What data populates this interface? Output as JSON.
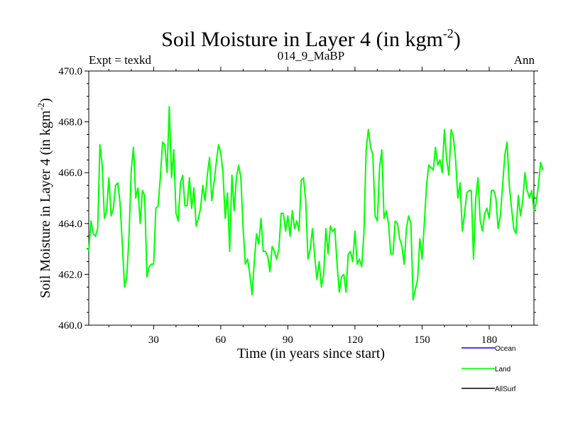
{
  "chart_data": {
    "type": "line",
    "title": "Soil Moisture in Layer 4 (in kgm",
    "title_sup": "-2",
    "title_close": ")",
    "subtitle_left": "Expt = texkd",
    "subtitle_center": "014_9_MaBP",
    "subtitle_right": "Ann",
    "xlabel": "Time (in years since start)",
    "ylabel": "Soil Moisture in Layer 4 (in kgm",
    "ylabel_sup": "-2",
    "ylabel_close": ")",
    "xlim": [
      1,
      200
    ],
    "ylim": [
      460,
      470
    ],
    "xticks": [
      30,
      60,
      90,
      120,
      150,
      180
    ],
    "xtick_labels": [
      "30",
      "60",
      "90",
      "120",
      "150",
      "180"
    ],
    "yticks": [
      460,
      462,
      464,
      466,
      468,
      470
    ],
    "ytick_labels": [
      "460.0",
      "462.0",
      "464.0",
      "466.0",
      "468.0",
      "470.0"
    ],
    "legend": [
      {
        "name": "Ocean",
        "color": "#0000ff"
      },
      {
        "name": "Land",
        "color": "#00ff00"
      },
      {
        "name": "AllSurf",
        "color": "#000000"
      }
    ],
    "series": [
      {
        "name": "Land",
        "color": "#00ff00",
        "x_start": 1,
        "x_step": 1,
        "values": [
          462.9,
          464.1,
          463.6,
          463.5,
          463.8,
          467.1,
          466.3,
          464.2,
          464.5,
          465.8,
          464.3,
          464.6,
          465.5,
          465.6,
          464.8,
          463.2,
          461.5,
          461.9,
          463.5,
          466.1,
          467.0,
          465.0,
          465.4,
          464.0,
          465.3,
          465.1,
          461.9,
          462.3,
          462.4,
          462.4,
          464.6,
          464.7,
          465.8,
          467.2,
          467.1,
          466.0,
          468.6,
          465.8,
          466.9,
          464.4,
          464.1,
          465.6,
          465.9,
          464.7,
          464.7,
          465.8,
          464.6,
          465.4,
          463.9,
          464.2,
          464.6,
          465.5,
          464.9,
          465.9,
          466.6,
          464.9,
          465.6,
          466.4,
          467.1,
          466.8,
          466.0,
          464.2,
          465.2,
          462.9,
          465.9,
          464.5,
          465.8,
          466.3,
          465.8,
          463.8,
          462.4,
          462.6,
          462.0,
          461.2,
          462.5,
          463.6,
          463.2,
          464.2,
          462.9,
          462.9,
          462.7,
          462.1,
          463.1,
          462.9,
          462.6,
          463.0,
          464.4,
          464.4,
          463.7,
          464.3,
          463.5,
          464.5,
          463.8,
          464.1,
          463.7,
          465.7,
          465.8,
          464.9,
          462.6,
          463.0,
          463.8,
          462.7,
          461.8,
          462.5,
          461.5,
          462.0,
          463.8,
          462.8,
          463.9,
          463.7,
          463.8,
          462.4,
          461.3,
          461.9,
          462.0,
          461.3,
          462.8,
          462.9,
          462.5,
          463.7,
          462.4,
          462.6,
          462.3,
          463.6,
          466.9,
          467.7,
          467.0,
          466.7,
          464.3,
          464.1,
          466.2,
          466.9,
          464.2,
          464.5,
          464.0,
          462.8,
          462.8,
          464.1,
          464.0,
          463.4,
          463.1,
          462.4,
          463.8,
          464.3,
          464.0,
          461.0,
          461.4,
          461.8,
          463.4,
          462.6,
          464.0,
          465.5,
          466.3,
          466.2,
          466.1,
          467.0,
          466.3,
          466.5,
          466.0,
          467.7,
          466.5,
          465.9,
          467.7,
          467.4,
          466.5,
          465.0,
          465.6,
          463.7,
          464.4,
          465.2,
          465.3,
          465.3,
          462.6,
          465.0,
          465.8,
          464.1,
          463.7,
          464.4,
          464.6,
          464.2,
          465.3,
          465.3,
          465.0,
          463.8,
          464.3,
          465.5,
          466.7,
          467.2,
          465.5,
          464.6,
          463.8,
          463.6,
          465.1,
          464.3,
          464.9,
          466.0,
          465.3,
          465.0,
          465.3,
          464.5,
          464.8,
          465.5,
          466.4,
          466.1
        ]
      }
    ]
  }
}
